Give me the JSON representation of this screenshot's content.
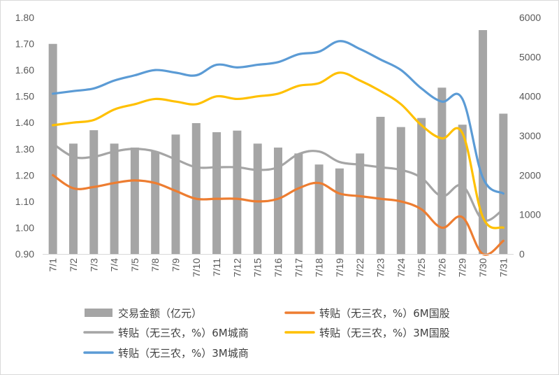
{
  "chart_data": {
    "type": "bar+line",
    "categories": [
      "7/1",
      "7/2",
      "7/3",
      "7/4",
      "7/5",
      "7/8",
      "7/9",
      "7/10",
      "7/11",
      "7/12",
      "7/15",
      "7/16",
      "7/17",
      "7/18",
      "7/19",
      "7/22",
      "7/23",
      "7/24",
      "7/25",
      "7/26",
      "7/29",
      "7/30",
      "7/31"
    ],
    "bars": {
      "name": "交易金额（亿元）",
      "axis": "right",
      "color": "#a5a5a5",
      "values": [
        5330,
        2800,
        3140,
        2800,
        2700,
        2600,
        3030,
        3320,
        3090,
        3130,
        2800,
        2700,
        2550,
        2270,
        2170,
        2550,
        3480,
        3220,
        3450,
        4220,
        3280,
        5680,
        3560
      ]
    },
    "series": [
      {
        "name": "转贴（无三农，%）6M国股",
        "axis": "left",
        "color": "#ed7d31",
        "values": [
          1.2,
          1.15,
          1.155,
          1.17,
          1.18,
          1.17,
          1.14,
          1.11,
          1.11,
          1.11,
          1.1,
          1.11,
          1.15,
          1.17,
          1.13,
          1.12,
          1.11,
          1.1,
          1.07,
          1.0,
          1.04,
          0.9,
          0.95
        ]
      },
      {
        "name": "转贴（无三农，%）6M城商",
        "axis": "left",
        "color": "#a5a5a5",
        "values": [
          1.32,
          1.27,
          1.27,
          1.29,
          1.3,
          1.29,
          1.26,
          1.23,
          1.23,
          1.23,
          1.22,
          1.23,
          1.28,
          1.29,
          1.25,
          1.24,
          1.23,
          1.22,
          1.19,
          1.12,
          1.16,
          1.03,
          1.07
        ]
      },
      {
        "name": "转贴（无三农，%）3M国股",
        "axis": "left",
        "color": "#ffc000",
        "values": [
          1.39,
          1.4,
          1.41,
          1.45,
          1.47,
          1.49,
          1.48,
          1.47,
          1.5,
          1.49,
          1.5,
          1.51,
          1.54,
          1.55,
          1.59,
          1.56,
          1.52,
          1.47,
          1.39,
          1.34,
          1.36,
          1.04,
          1.0
        ]
      },
      {
        "name": "转贴（无三农，%）3M城商",
        "axis": "left",
        "color": "#5b9bd5",
        "values": [
          1.51,
          1.52,
          1.53,
          1.56,
          1.58,
          1.6,
          1.59,
          1.58,
          1.62,
          1.61,
          1.62,
          1.63,
          1.66,
          1.67,
          1.71,
          1.68,
          1.64,
          1.6,
          1.53,
          1.48,
          1.49,
          1.19,
          1.13
        ]
      }
    ],
    "left_axis": {
      "min": 0.9,
      "max": 1.8,
      "step": 0.1,
      "tick_labels": [
        "0.90",
        "1.00",
        "1.10",
        "1.20",
        "1.30",
        "1.40",
        "1.50",
        "1.60",
        "1.70",
        "1.80"
      ]
    },
    "right_axis": {
      "min": 0,
      "max": 6000,
      "step": 1000,
      "tick_labels": [
        "0",
        "1000",
        "2000",
        "3000",
        "4000",
        "5000",
        "6000"
      ]
    },
    "grid": false,
    "legend": {
      "placement": "bottom",
      "items": [
        {
          "label": "交易金额（亿元）",
          "kind": "bar",
          "color": "#a5a5a5"
        },
        {
          "label": "转贴（无三农，%）6M国股",
          "kind": "line",
          "color": "#ed7d31"
        },
        {
          "label": "转贴（无三农，%）6M城商",
          "kind": "line",
          "color": "#a5a5a5"
        },
        {
          "label": "转贴（无三农，%）3M国股",
          "kind": "line",
          "color": "#ffc000"
        },
        {
          "label": "转贴（无三农，%）3M城商",
          "kind": "line",
          "color": "#5b9bd5"
        }
      ]
    }
  }
}
